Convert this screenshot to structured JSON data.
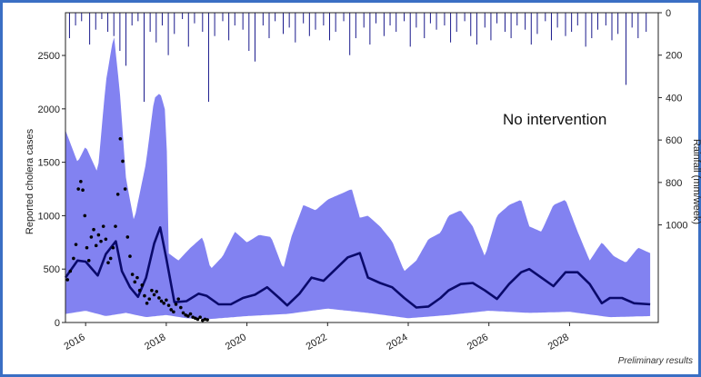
{
  "chart_data": {
    "type": "line",
    "annotation": "No intervention",
    "footnote": "Preliminary results",
    "ylabel_left": "Reported cholera cases",
    "ylabel_right": "Rainfall (mm/week)",
    "xlim": [
      2015.5,
      2030.2
    ],
    "ylim_left": [
      0,
      2900
    ],
    "ylim_right": [
      0,
      1460
    ],
    "right_axis_inverted": true,
    "x_ticks": [
      2016,
      2018,
      2020,
      2022,
      2024,
      2026,
      2028
    ],
    "x_tick_labels": [
      "2016",
      "2018",
      "2020",
      "2022",
      "2024",
      "2026",
      "2028"
    ],
    "y_ticks_left": [
      0,
      500,
      1000,
      1500,
      2000,
      2500
    ],
    "y_tick_labels_left": [
      "0",
      "500",
      "1000",
      "1500",
      "2000",
      "2500"
    ],
    "y_ticks_right": [
      0,
      200,
      400,
      600,
      800,
      1000
    ],
    "y_tick_labels_right": [
      "0",
      "200",
      "400",
      "600",
      "800",
      "1000"
    ],
    "colors": {
      "band": "#7b7bf0",
      "median": "#0a0a6b",
      "rain": "#1a1a8c",
      "observed": "#000000"
    },
    "series": [
      {
        "name": "Model median",
        "x": [
          2015.5,
          2015.8,
          2016.0,
          2016.3,
          2016.5,
          2016.75,
          2016.9,
          2017.1,
          2017.3,
          2017.5,
          2017.7,
          2017.85,
          2018.0,
          2018.2,
          2018.5,
          2018.8,
          2019.0,
          2019.3,
          2019.6,
          2019.9,
          2020.2,
          2020.5,
          2020.8,
          2021.0,
          2021.3,
          2021.6,
          2021.9,
          2022.2,
          2022.5,
          2022.8,
          2023.0,
          2023.3,
          2023.6,
          2023.9,
          2024.2,
          2024.5,
          2024.8,
          2025.0,
          2025.3,
          2025.6,
          2025.9,
          2026.2,
          2026.5,
          2026.8,
          2027.0,
          2027.3,
          2027.6,
          2027.9,
          2028.2,
          2028.5,
          2028.8,
          2029.0,
          2029.3,
          2029.6,
          2030.0
        ],
        "values": [
          420,
          580,
          570,
          440,
          640,
          760,
          480,
          330,
          240,
          420,
          740,
          890,
          600,
          190,
          200,
          270,
          250,
          170,
          170,
          230,
          260,
          330,
          230,
          160,
          270,
          420,
          390,
          500,
          610,
          650,
          420,
          370,
          330,
          230,
          140,
          150,
          230,
          300,
          360,
          370,
          300,
          220,
          360,
          470,
          500,
          420,
          340,
          470,
          470,
          360,
          180,
          230,
          230,
          180,
          170
        ]
      },
      {
        "name": "Band upper",
        "x": [
          2015.5,
          2015.8,
          2016.0,
          2016.3,
          2016.5,
          2016.7,
          2016.85,
          2017.0,
          2017.2,
          2017.5,
          2017.7,
          2017.85,
          2018.0,
          2018.05,
          2018.3,
          2018.6,
          2018.9,
          2019.1,
          2019.4,
          2019.7,
          2020.0,
          2020.3,
          2020.6,
          2020.9,
          2021.1,
          2021.4,
          2021.7,
          2022.0,
          2022.3,
          2022.6,
          2022.8,
          2023.0,
          2023.3,
          2023.6,
          2023.9,
          2024.2,
          2024.5,
          2024.8,
          2025.0,
          2025.3,
          2025.6,
          2025.9,
          2026.2,
          2026.5,
          2026.8,
          2027.0,
          2027.3,
          2027.6,
          2027.9,
          2028.2,
          2028.5,
          2028.8,
          2029.1,
          2029.4,
          2029.7,
          2030.0
        ],
        "values": [
          1800,
          1500,
          1650,
          1400,
          2250,
          2700,
          2150,
          1350,
          950,
          1500,
          2100,
          2150,
          1950,
          650,
          580,
          700,
          800,
          500,
          620,
          850,
          750,
          820,
          800,
          500,
          800,
          1100,
          1050,
          1150,
          1200,
          1250,
          980,
          1000,
          900,
          760,
          480,
          580,
          780,
          840,
          1000,
          1050,
          900,
          620,
          1000,
          1100,
          1150,
          900,
          850,
          1100,
          1150,
          850,
          580,
          750,
          620,
          560,
          700,
          650
        ]
      },
      {
        "name": "Band lower",
        "x": [
          2015.5,
          2016.0,
          2016.5,
          2017.0,
          2017.5,
          2018.0,
          2018.5,
          2019.0,
          2020.0,
          2021.0,
          2022.0,
          2023.0,
          2024.0,
          2025.0,
          2026.0,
          2027.0,
          2028.0,
          2029.0,
          2030.0
        ],
        "values": [
          80,
          110,
          60,
          90,
          50,
          70,
          40,
          30,
          60,
          80,
          130,
          90,
          40,
          70,
          110,
          90,
          100,
          50,
          60
        ]
      },
      {
        "name": "Reported cases",
        "x": [
          2015.55,
          2015.62,
          2015.7,
          2015.76,
          2015.82,
          2015.88,
          2015.93,
          2015.98,
          2016.03,
          2016.08,
          2016.14,
          2016.2,
          2016.26,
          2016.32,
          2016.38,
          2016.44,
          2016.5,
          2016.56,
          2016.62,
          2016.68,
          2016.74,
          2016.8,
          2016.86,
          2016.92,
          2016.98,
          2017.04,
          2017.1,
          2017.16,
          2017.22,
          2017.28,
          2017.34,
          2017.4,
          2017.46,
          2017.52,
          2017.58,
          2017.64,
          2017.7,
          2017.76,
          2017.82,
          2017.88,
          2017.94,
          2018.0,
          2018.06,
          2018.12,
          2018.18,
          2018.24,
          2018.3,
          2018.36,
          2018.42,
          2018.48,
          2018.54,
          2018.6,
          2018.66,
          2018.72,
          2018.78,
          2018.84,
          2018.9,
          2018.96,
          2019.02
        ],
        "values": [
          400,
          480,
          600,
          730,
          1250,
          1320,
          1240,
          1000,
          700,
          580,
          800,
          870,
          720,
          820,
          760,
          900,
          780,
          560,
          600,
          700,
          900,
          1200,
          1720,
          1510,
          1250,
          800,
          620,
          450,
          380,
          420,
          300,
          350,
          250,
          180,
          220,
          300,
          260,
          290,
          230,
          200,
          180,
          210,
          160,
          120,
          100,
          170,
          220,
          140,
          90,
          70,
          60,
          80,
          50,
          40,
          30,
          50,
          20,
          30,
          25
        ]
      },
      {
        "name": "Rainfall",
        "x": [
          2015.6,
          2015.75,
          2015.9,
          2016.1,
          2016.25,
          2016.4,
          2016.55,
          2016.7,
          2016.85,
          2017.0,
          2017.15,
          2017.3,
          2017.45,
          2017.6,
          2017.75,
          2017.9,
          2018.05,
          2018.2,
          2018.4,
          2018.55,
          2018.7,
          2018.9,
          2019.05,
          2019.2,
          2019.4,
          2019.55,
          2019.7,
          2019.9,
          2020.05,
          2020.2,
          2020.4,
          2020.55,
          2020.7,
          2020.9,
          2021.05,
          2021.2,
          2021.4,
          2021.55,
          2021.7,
          2021.9,
          2022.05,
          2022.2,
          2022.4,
          2022.55,
          2022.7,
          2022.9,
          2023.05,
          2023.2,
          2023.4,
          2023.55,
          2023.7,
          2023.9,
          2024.05,
          2024.2,
          2024.4,
          2024.55,
          2024.7,
          2024.9,
          2025.05,
          2025.2,
          2025.4,
          2025.55,
          2025.7,
          2025.9,
          2026.05,
          2026.2,
          2026.4,
          2026.55,
          2026.7,
          2026.9,
          2027.05,
          2027.2,
          2027.4,
          2027.55,
          2027.7,
          2027.9,
          2028.05,
          2028.2,
          2028.4,
          2028.55,
          2028.7,
          2028.9,
          2029.05,
          2029.2,
          2029.4,
          2029.55,
          2029.7,
          2029.9
        ],
        "values": [
          120,
          60,
          40,
          150,
          80,
          30,
          90,
          110,
          180,
          250,
          60,
          40,
          420,
          90,
          140,
          60,
          200,
          100,
          30,
          160,
          50,
          90,
          420,
          110,
          40,
          130,
          60,
          80,
          180,
          230,
          60,
          120,
          40,
          100,
          70,
          140,
          50,
          110,
          80,
          60,
          130,
          90,
          40,
          200,
          120,
          70,
          150,
          50,
          110,
          60,
          90,
          40,
          160,
          70,
          120,
          50,
          80,
          60,
          140,
          90,
          40,
          110,
          150,
          70,
          130,
          50,
          90,
          120,
          60,
          80,
          150,
          100,
          40,
          130,
          70,
          110,
          90,
          60,
          160,
          120,
          80,
          60,
          130,
          100,
          340,
          70,
          120,
          90
        ]
      }
    ]
  }
}
